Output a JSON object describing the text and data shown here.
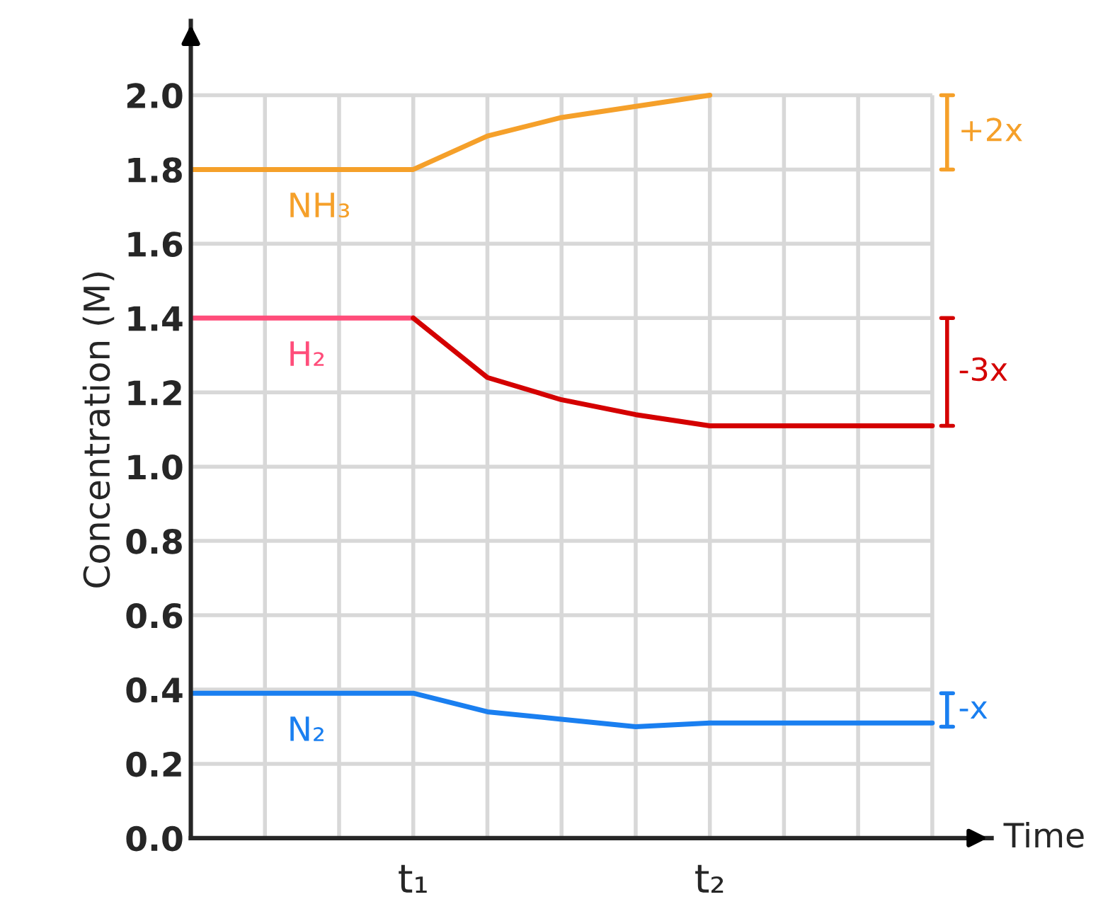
{
  "chart_data": {
    "type": "line",
    "xlabel": "Time",
    "ylabel": "Concentration (M)",
    "categories": [
      null,
      null,
      null,
      "t₁",
      null,
      null,
      null,
      "t₂",
      null,
      null,
      null
    ],
    "ylim": [
      0,
      2.2
    ],
    "yticks": [
      {
        "value": 0,
        "label": "0.0"
      },
      0.2,
      0.4,
      0.6,
      0.8,
      {
        "value": 1,
        "label": "1.0"
      },
      1.2,
      1.4,
      1.6,
      1.8,
      {
        "value": 2,
        "label": "2.0"
      }
    ],
    "grid": true,
    "legend": false,
    "marker": "none",
    "line_style": "solid",
    "series": [
      {
        "name": "NH₃",
        "color": "#f5a02a",
        "values": [
          1.8,
          1.8,
          1.8,
          1.8,
          1.89,
          1.94,
          1.97,
          2.0,
          null,
          null,
          null
        ]
      },
      {
        "name": "H₂",
        "color": "#ff4d7a",
        "values": [
          1.4,
          1.4,
          1.4,
          1.4,
          null,
          null,
          null,
          null,
          null,
          null,
          null
        ]
      },
      {
        "color": "#d40000",
        "values": [
          null,
          null,
          null,
          1.4,
          1.24,
          1.18,
          1.14,
          1.11,
          1.11,
          1.11,
          1.11
        ]
      },
      {
        "name": "N₂",
        "color": "#1a7ff0",
        "values": [
          0.39,
          0.39,
          0.39,
          0.39,
          0.34,
          0.32,
          0.3,
          0.31,
          0.31,
          0.31,
          0.31
        ]
      }
    ],
    "annotations": [
      "+2x",
      "-3x",
      "-x"
    ]
  }
}
